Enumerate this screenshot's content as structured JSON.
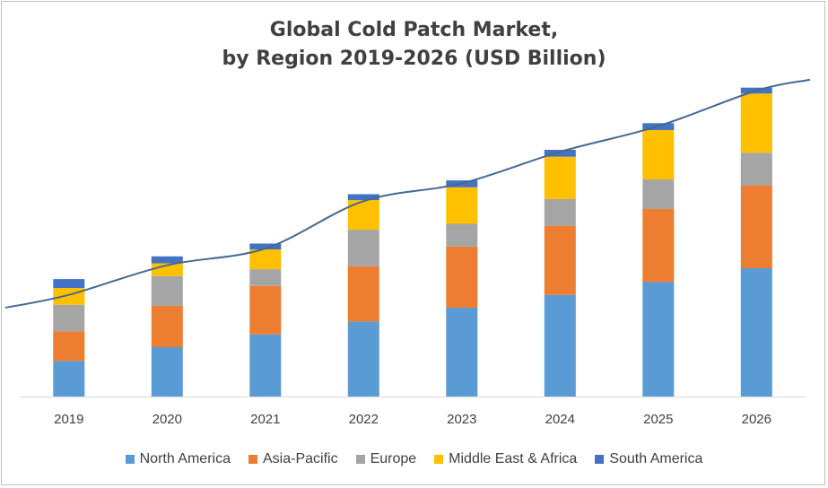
{
  "chart_data": {
    "type": "bar",
    "stacked": true,
    "title": "Global Cold Patch Market,",
    "subtitle": "by Region 2019-2026 (USD Billion)",
    "xlabel": "",
    "ylabel": "",
    "categories": [
      "2019",
      "2020",
      "2021",
      "2022",
      "2023",
      "2024",
      "2025",
      "2026"
    ],
    "series": [
      {
        "name": "North America",
        "color": "#5B9BD5",
        "values": [
          36,
          50,
          63,
          76,
          90,
          103,
          116,
          130
        ]
      },
      {
        "name": "Asia-Pacific",
        "color": "#ED7D31",
        "values": [
          30,
          42,
          49,
          56,
          62,
          70,
          74,
          84
        ]
      },
      {
        "name": "Europe",
        "color": "#A5A5A5",
        "values": [
          27,
          30,
          17,
          37,
          23,
          27,
          30,
          33
        ]
      },
      {
        "name": "Middle East & Africa",
        "color": "#FFC000",
        "values": [
          17,
          13,
          20,
          30,
          37,
          43,
          50,
          60
        ]
      },
      {
        "name": "South America",
        "color": "#4472C4",
        "values": [
          9,
          7,
          6,
          6,
          7,
          7,
          7,
          6
        ]
      }
    ],
    "trend_line": {
      "color": "#44698F",
      "values": [
        103,
        133,
        150,
        198,
        216,
        248,
        274,
        310
      ]
    },
    "ylim": [
      0,
      330
    ],
    "grid": false,
    "legend_position": "bottom"
  }
}
